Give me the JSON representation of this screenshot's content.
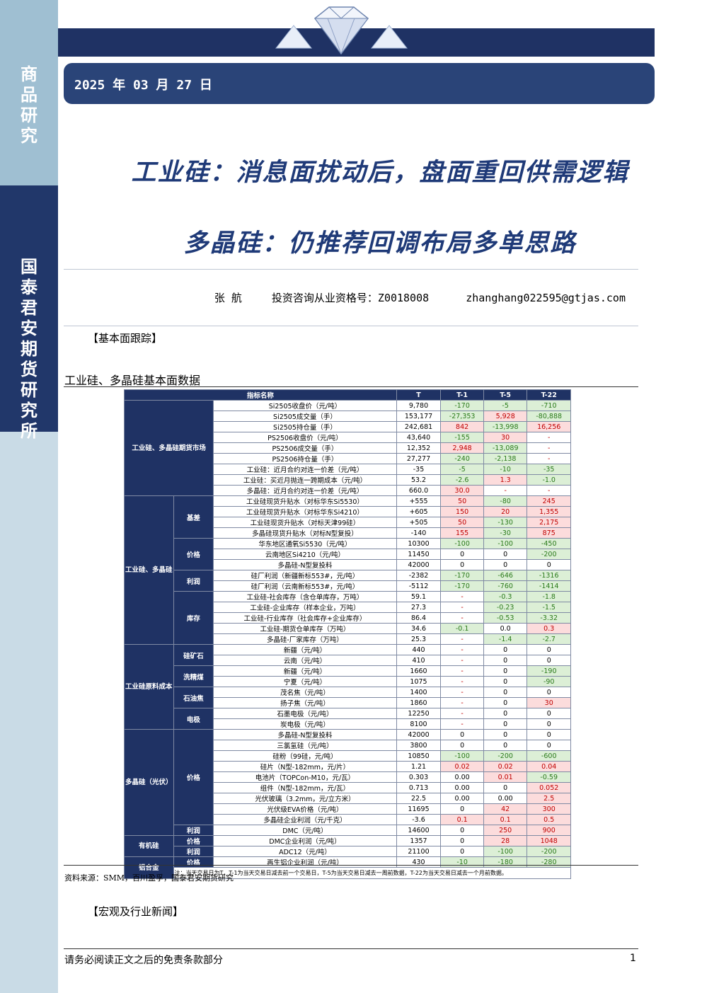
{
  "sidebar": {
    "top_text": "商品研究",
    "bottom_text": "国泰君安期货研究所"
  },
  "header": {
    "date": "2025 年 03 月 27 日"
  },
  "titles": {
    "line1": "工业硅：消息面扰动后，盘面重回供需逻辑",
    "line2": "多晶硅：仍推荐回调布局多单思路"
  },
  "author": {
    "name": "张 航",
    "license": "投资咨询从业资格号：Z0018008",
    "email": "zhanghang022595@gtjas.com"
  },
  "sections": {
    "fundamentals": "【基本面跟踪】",
    "news": "【宏观及行业新闻】"
  },
  "table_title": "工业硅、多晶硅基本面数据",
  "table": {
    "headers": [
      "指标名称",
      "T",
      "T-1",
      "T-5",
      "T-22"
    ],
    "groups": {
      "futures": "工业硅、多晶硅期货市场",
      "si_poly": "工业硅、多晶硅",
      "raw_cost": "工业硅原料成本",
      "poly_pv": "多晶硅（光伏）",
      "organic": "有机硅",
      "alloy": "铝合金"
    },
    "subgroups": {
      "basis": "基差",
      "price1": "价格",
      "profit1": "利润",
      "inventory": "库存",
      "ore": "硅矿石",
      "coal": "洗精煤",
      "coke": "石油焦",
      "electrode": "电极",
      "price2": "价格",
      "profit2": "利润",
      "price3": "价格",
      "profit3": "利润",
      "price4": "价格",
      "profit4": "利润"
    },
    "rows": [
      [
        "Si2505收盘价（元/吨）",
        "9,780",
        "-170",
        "-5",
        "-710"
      ],
      [
        "Si2505成交量（手）",
        "153,177",
        "-27,353",
        "5,928",
        "-80,888"
      ],
      [
        "Si2505持仓量（手）",
        "242,681",
        "842",
        "-13,998",
        "16,256"
      ],
      [
        "PS2506收盘价（元/吨）",
        "43,640",
        "-155",
        "30",
        "-"
      ],
      [
        "PS2506成交量（手）",
        "12,352",
        "2,948",
        "-13,089",
        "-"
      ],
      [
        "PS2506持仓量（手）",
        "27,277",
        "-240",
        "-2,138",
        "-"
      ],
      [
        "工业硅：近月合约对连一价差（元/吨）",
        "-35",
        "-5",
        "-10",
        "-35"
      ],
      [
        "工业硅：买近月抛连一跨期成本（元/吨）",
        "53.2",
        "-2.6",
        "1.3",
        "-1.0"
      ],
      [
        "多晶硅：近月合约对连一价差（元/吨）",
        "660.0",
        "30.0",
        "-",
        "-"
      ],
      [
        "工业硅现货升贴水（对标华东Si5530）",
        "+555",
        "50",
        "-80",
        "245"
      ],
      [
        "工业硅现货升贴水（对标华东Si4210）",
        "+605",
        "150",
        "20",
        "1,355"
      ],
      [
        "工业硅现货升贴水（对标天津99硅）",
        "+505",
        "50",
        "-130",
        "2,175"
      ],
      [
        "多晶硅现货升贴水（对标N型复投）",
        "-140",
        "155",
        "-30",
        "875"
      ],
      [
        "华东地区通氧Si5530（元/吨）",
        "10300",
        "-100",
        "-100",
        "-450"
      ],
      [
        "云南地区Si4210（元/吨）",
        "11450",
        "0",
        "0",
        "-200"
      ],
      [
        "多晶硅-N型复投料",
        "42000",
        "0",
        "0",
        "0"
      ],
      [
        "硅厂利润（新疆新标553#，元/吨）",
        "-2382",
        "-170",
        "-646",
        "-1316"
      ],
      [
        "硅厂利润（云南新标553#，元/吨）",
        "-5112",
        "-170",
        "-760",
        "-1414"
      ],
      [
        "工业硅-社会库存（含仓单库存，万吨）",
        "59.1",
        "-",
        "-0.3",
        "-1.8"
      ],
      [
        "工业硅-企业库存（样本企业，万吨）",
        "27.3",
        "-",
        "-0.23",
        "-1.5"
      ],
      [
        "工业硅-行业库存（社会库存+企业库存）",
        "86.4",
        "-",
        "-0.53",
        "-3.32"
      ],
      [
        "工业硅-期货仓单库存（万吨）",
        "34.6",
        "-0.1",
        "0.0",
        "0.3"
      ],
      [
        "多晶硅-厂家库存（万吨）",
        "25.3",
        "-",
        "-1.4",
        "-2.7"
      ],
      [
        "新疆（元/吨）",
        "440",
        "-",
        "0",
        "0"
      ],
      [
        "云南（元/吨）",
        "410",
        "-",
        "0",
        "0"
      ],
      [
        "新疆（元/吨）",
        "1660",
        "-",
        "0",
        "-190"
      ],
      [
        "宁夏（元/吨）",
        "1075",
        "-",
        "0",
        "-90"
      ],
      [
        "茂名焦（元/吨）",
        "1400",
        "-",
        "0",
        "0"
      ],
      [
        "扬子焦（元/吨）",
        "1860",
        "-",
        "0",
        "30"
      ],
      [
        "石墨电极（元/吨）",
        "12250",
        "-",
        "0",
        "0"
      ],
      [
        "炭电极（元/吨）",
        "8100",
        "-",
        "0",
        "0"
      ],
      [
        "多晶硅-N型复投料",
        "42000",
        "0",
        "0",
        "0"
      ],
      [
        "三氯氢硅（元/吨）",
        "3800",
        "0",
        "0",
        "0"
      ],
      [
        "硅粉（99硅，元/吨）",
        "10850",
        "-100",
        "-200",
        "-600"
      ],
      [
        "硅片（N型-182mm，元/片）",
        "1.21",
        "0.02",
        "0.02",
        "0.04"
      ],
      [
        "电池片（TOPCon-M10，元/瓦）",
        "0.303",
        "0.00",
        "0.01",
        "-0.59"
      ],
      [
        "组件（N型-182mm，元/瓦）",
        "0.713",
        "0.00",
        "0",
        "0.052"
      ],
      [
        "光伏玻璃（3.2mm，元/立方米）",
        "22.5",
        "0.00",
        "0.00",
        "2.5"
      ],
      [
        "光伏级EVA价格（元/吨）",
        "11695",
        "0",
        "42",
        "300"
      ],
      [
        "多晶硅企业利润（元/千克）",
        "-3.6",
        "0.1",
        "0.1",
        "0.5"
      ],
      [
        "DMC（元/吨）",
        "14600",
        "0",
        "250",
        "900"
      ],
      [
        "DMC企业利润（元/吨）",
        "1357",
        "0",
        "28",
        "1048"
      ],
      [
        "ADC12（元/吨）",
        "21100",
        "0",
        "-100",
        "-200"
      ],
      [
        "再生铝企业利润（元/吨）",
        "430",
        "-10",
        "-180",
        "-280"
      ]
    ],
    "note": "注：当天交易日为T，T-1为当天交易日减去前一个交易日，T-5为当天交易日减去一周前数据，T-22为当天交易日减去一个月前数据。"
  },
  "source": "资料来源：SMM，百川盈孚，国泰君安期货研究",
  "footer": {
    "disclaimer": "请务必阅读正文之后的免责条款部分",
    "page": "1"
  }
}
